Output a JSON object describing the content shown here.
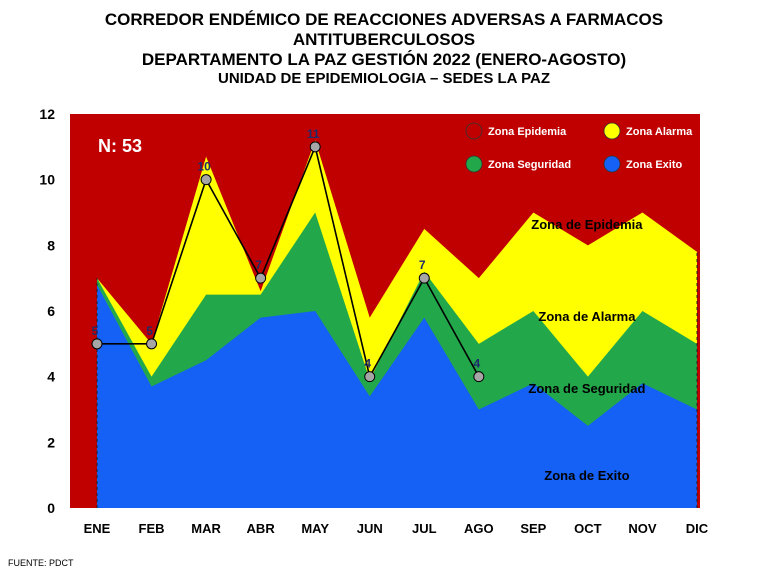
{
  "title_lines": [
    "CORREDOR ENDÉMICO DE REACCIONES ADVERSAS  A FARMACOS",
    "ANTITUBERCULOSOS",
    "DEPARTAMENTO  LA PAZ GESTIÓN 2022 (ENERO-AGOSTO)",
    "UNIDAD DE EPIDEMIOLOGIA – SEDES LA PAZ"
  ],
  "n_label": "N: 53",
  "source": "FUENTE:  PDCT",
  "colors": {
    "epidemia": "#C00000",
    "alarma": "#FFFF00",
    "seguridad": "#22A84A",
    "exito": "#1560F5",
    "line": "#000000",
    "marker": "#A6A6A6",
    "value_label": "#1F2A6B"
  },
  "chart_data": {
    "type": "area",
    "categories": [
      "ENE",
      "FEB",
      "MAR",
      "ABR",
      "MAY",
      "JUN",
      "JUL",
      "AGO",
      "SEP",
      "OCT",
      "NOV",
      "DIC"
    ],
    "ylim": [
      0,
      12
    ],
    "yticks": [
      0,
      2,
      4,
      6,
      8,
      10,
      12
    ],
    "grid": false,
    "legend_position": "top-right",
    "series": [
      {
        "name": "Zona Exito",
        "key": "exito",
        "values": [
          6.8,
          3.7,
          4.5,
          5.8,
          6,
          3.4,
          5.8,
          3,
          3.8,
          2.5,
          3.8,
          3
        ]
      },
      {
        "name": "Zona Seguridad",
        "key": "seguridad",
        "values": [
          7,
          4,
          6.5,
          6.5,
          9,
          3.9,
          7.2,
          5,
          6,
          4,
          6,
          5
        ]
      },
      {
        "name": "Zona Alarma",
        "key": "alarma",
        "values": [
          7,
          5,
          10.7,
          6.6,
          11.2,
          5.8,
          8.5,
          7,
          9,
          8,
          9,
          7.8
        ]
      },
      {
        "name": "Zona Epidemia",
        "key": "epidemia",
        "values": [
          12,
          12,
          12,
          12,
          12,
          12,
          12,
          12,
          12,
          12,
          12,
          12
        ]
      }
    ],
    "cases": {
      "categories": [
        "ENE",
        "FEB",
        "MAR",
        "ABR",
        "MAY",
        "JUN",
        "JUL",
        "AGO"
      ],
      "values": [
        5,
        5,
        10,
        7,
        11,
        4,
        7,
        4
      ]
    },
    "legend": [
      {
        "label": "Zona Epidemia",
        "key": "epidemia"
      },
      {
        "label": "Zona Alarma",
        "key": "alarma"
      },
      {
        "label": "Zona Seguridad",
        "key": "seguridad"
      },
      {
        "label": "Zona Exito",
        "key": "exito"
      }
    ],
    "zone_labels": [
      {
        "text": "Zona de Epidemia",
        "month": "OCT",
        "y": 8.5
      },
      {
        "text": "Zona de Alarma",
        "month": "OCT",
        "y": 5.7
      },
      {
        "text": "Zona de Seguridad",
        "month": "OCT",
        "y": 3.5
      },
      {
        "text": "Zona de Exito",
        "month": "OCT",
        "y": 0.85
      }
    ]
  }
}
